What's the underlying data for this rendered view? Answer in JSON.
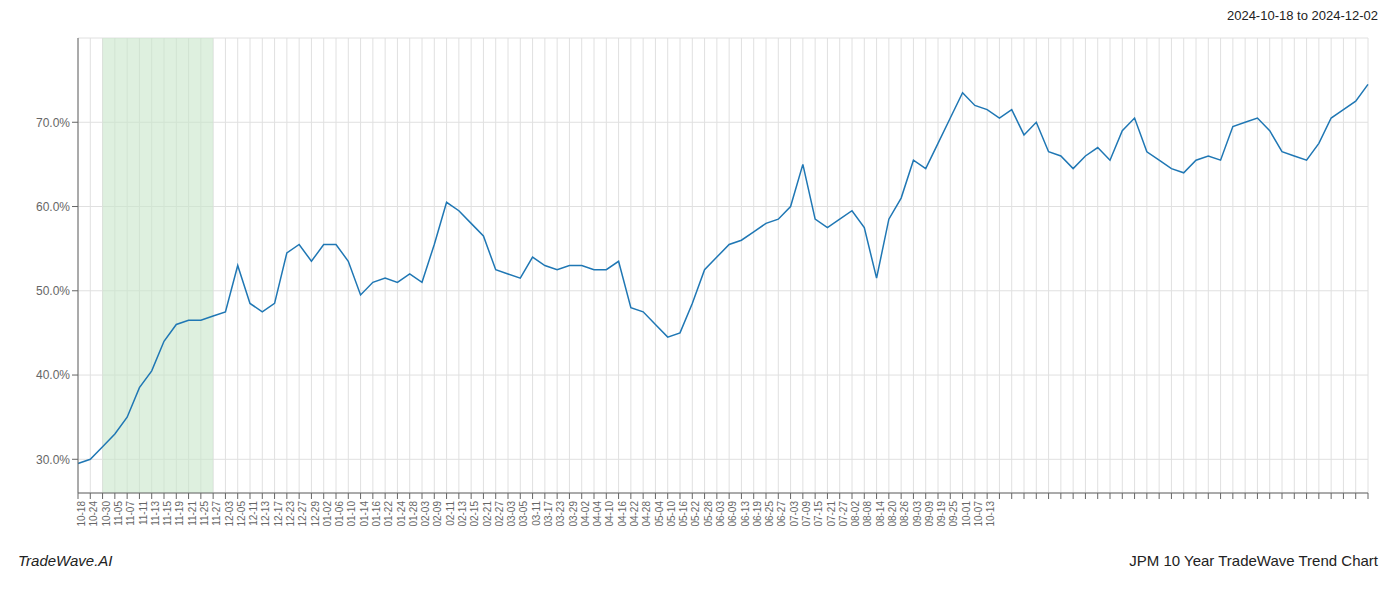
{
  "chart_data": {
    "type": "line",
    "title": "JPM 10 Year TradeWave Trend Chart",
    "subtitle": "2024-10-18 to 2024-12-02",
    "annotations": [
      "TradeWave.AI"
    ],
    "categories": [
      "10-18",
      "10-24",
      "10-30",
      "11-05",
      "11-07",
      "11-11",
      "11-13",
      "11-15",
      "11-19",
      "11-21",
      "11-25",
      "11-27",
      "12-03",
      "12-05",
      "12-11",
      "12-13",
      "12-17",
      "12-23",
      "12-27",
      "12-29",
      "01-02",
      "01-06",
      "01-10",
      "01-14",
      "01-16",
      "01-22",
      "01-24",
      "01-28",
      "02-03",
      "02-09",
      "02-11",
      "02-13",
      "02-15",
      "02-21",
      "02-27",
      "03-03",
      "03-05",
      "03-11",
      "03-17",
      "03-23",
      "03-29",
      "04-02",
      "04-04",
      "04-10",
      "04-16",
      "04-22",
      "04-28",
      "05-04",
      "05-10",
      "05-16",
      "05-22",
      "05-28",
      "06-03",
      "06-09",
      "06-13",
      "06-19",
      "06-25",
      "06-27",
      "07-03",
      "07-09",
      "07-15",
      "07-21",
      "07-27",
      "08-02",
      "08-08",
      "08-14",
      "08-20",
      "08-26",
      "09-03",
      "09-09",
      "09-19",
      "09-25",
      "10-01",
      "10-07",
      "10-13",
      null,
      null,
      null,
      null,
      null,
      null,
      null,
      null,
      null,
      null,
      null,
      null,
      null,
      null,
      null,
      null,
      null,
      null,
      null,
      null,
      null,
      null,
      null,
      null,
      null,
      null,
      null,
      null,
      null,
      null,
      null
    ],
    "values": [
      29.5,
      30.0,
      31.5,
      33.0,
      35.0,
      38.5,
      40.5,
      44.0,
      46.0,
      46.5,
      46.5,
      47.0,
      47.5,
      53.0,
      48.5,
      47.5,
      48.5,
      54.5,
      55.5,
      53.5,
      55.5,
      55.5,
      53.5,
      49.5,
      51.0,
      51.5,
      51.0,
      52.0,
      51.0,
      55.5,
      60.5,
      59.5,
      58.0,
      56.5,
      52.5,
      52.0,
      51.5,
      54.0,
      53.0,
      52.5,
      53.0,
      53.0,
      52.5,
      52.5,
      53.5,
      48.0,
      47.5,
      46.0,
      44.5,
      45.0,
      48.5,
      52.5,
      54.0,
      55.5,
      56.0,
      57.0,
      58.0,
      58.5,
      60.0,
      65.0,
      58.5,
      57.5,
      58.5,
      59.5,
      57.5,
      51.5,
      58.5,
      61.0,
      65.5,
      64.5,
      67.5,
      70.5,
      73.5,
      72.0,
      71.5,
      70.5,
      71.5,
      68.5,
      70.0,
      66.5,
      66.0,
      64.5,
      66.0,
      67.0,
      65.5,
      69.0,
      70.5,
      66.5,
      65.5,
      64.5,
      64.0,
      65.5,
      66.0,
      65.5,
      69.5,
      70.0,
      70.5,
      69.0,
      66.5,
      66.0,
      65.5,
      67.5,
      70.5,
      71.5,
      72.5,
      74.5
    ],
    "color": "#1f77b4",
    "highlight": {
      "start": "10-30",
      "end": "11-27",
      "color": "#c8e6c9"
    },
    "ylim": [
      26.0,
      80.0
    ],
    "yticks": [
      {
        "value": 30.0,
        "label": "30.0%"
      },
      {
        "value": 40.0,
        "label": "40.0%"
      },
      {
        "value": 50.0,
        "label": "50.0%"
      },
      {
        "value": 60.0,
        "label": "60.0%"
      },
      {
        "value": 70.0,
        "label": "70.0%"
      }
    ],
    "grid": true
  }
}
